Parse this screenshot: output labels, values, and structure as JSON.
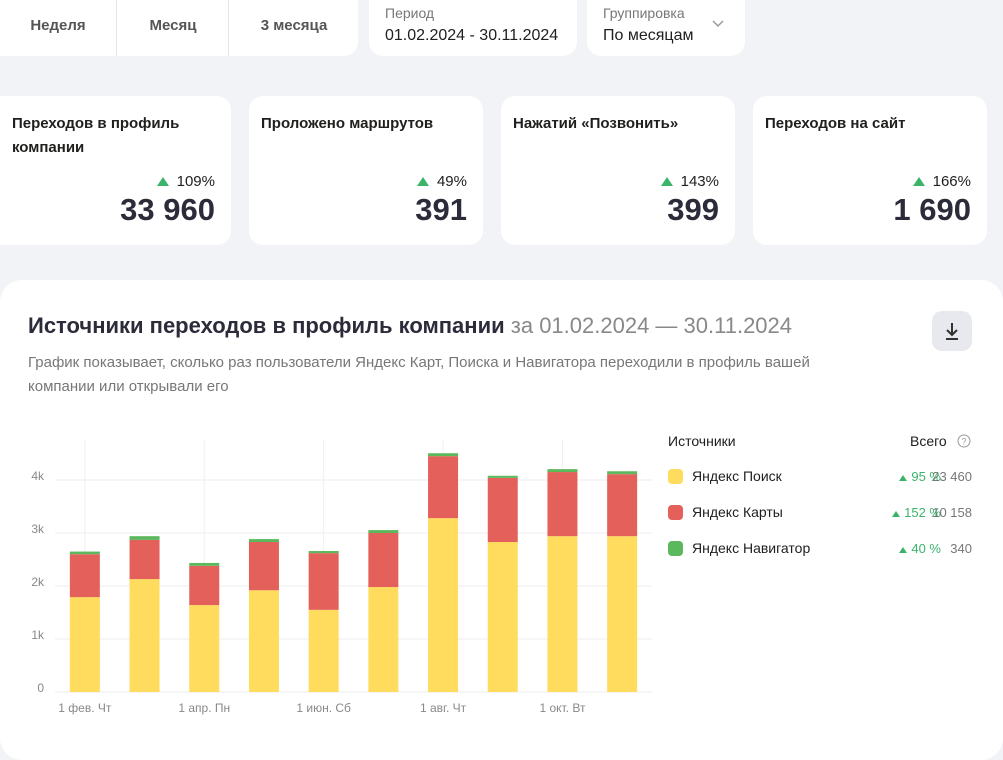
{
  "tabs": [
    "Неделя",
    "Месяц",
    "3 месяца"
  ],
  "period": {
    "label": "Период",
    "value": "01.02.2024 - 30.11.2024"
  },
  "grouping": {
    "label": "Группировка",
    "value": "По месяцам"
  },
  "metrics": [
    {
      "title": "Переходов в профиль компании",
      "change": "109%",
      "value": "33 960"
    },
    {
      "title": "Проложено маршрутов",
      "change": "49%",
      "value": "391"
    },
    {
      "title": "Нажатий «Позвонить»",
      "change": "143%",
      "value": "399"
    },
    {
      "title": "Переходов на сайт",
      "change": "166%",
      "value": "1 690"
    }
  ],
  "legend": {
    "header": "Источники",
    "total_header": "Всего",
    "rows": [
      {
        "change": "95 %",
        "total": "23 460"
      },
      {
        "change": "152 %",
        "total": "10 158"
      },
      {
        "change": "40 %",
        "total": "340"
      }
    ]
  },
  "chart_data": {
    "type": "stacked-bar",
    "title": "Источники переходов в профиль компании",
    "date_range": "за 01.02.2024 — 30.11.2024",
    "subtitle": "График показывает, сколько раз пользователи Яндекс Карт, Поиска и Навигатора переходили в профиль вашей компании или открывали его",
    "categories": [
      "1 фев. Чт",
      null,
      "1 апр. Пн",
      null,
      "1 июн. Сб",
      null,
      "1 авг. Чт",
      null,
      "1 окт. Вт",
      null
    ],
    "series": [
      {
        "name": "Яндекс Поиск",
        "color": "#ffdb5e",
        "values": [
          1790,
          2130,
          1640,
          1920,
          1550,
          1980,
          3280,
          2830,
          2940,
          2940
        ]
      },
      {
        "name": "Яндекс Карты",
        "color": "#e4605a",
        "values": [
          810,
          740,
          740,
          910,
          1070,
          1020,
          1170,
          1210,
          1210,
          1170
        ]
      },
      {
        "name": "Яндекс Навигатор",
        "color": "#5cb85c",
        "values": [
          50,
          70,
          55,
          55,
          40,
          55,
          55,
          40,
          55,
          55
        ]
      }
    ],
    "ylim": [
      0,
      4750
    ],
    "yticks": [
      0,
      {
        "value": 1000,
        "label": "1k"
      },
      {
        "value": 2000,
        "label": "2k"
      },
      {
        "value": 3000,
        "label": "3k"
      },
      {
        "value": 4000,
        "label": "4k"
      }
    ],
    "grid": true
  }
}
